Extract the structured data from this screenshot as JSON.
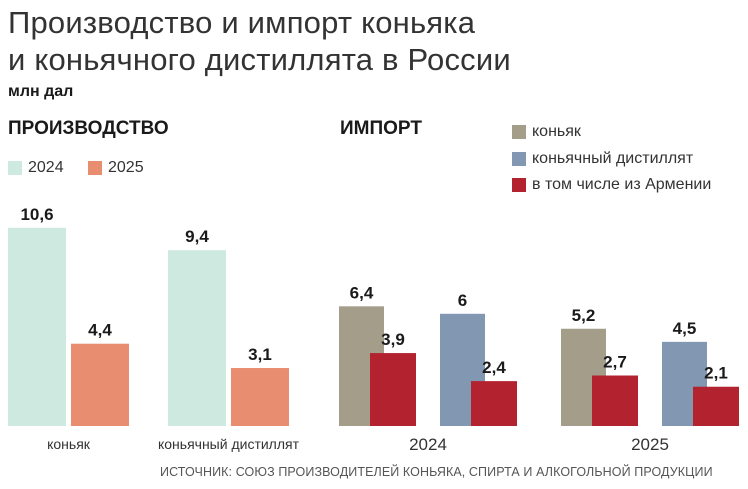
{
  "title_line1": "Производство и импорт коньяка",
  "title_line2": "и коньячного дистиллята в России",
  "unit": "млн дал",
  "source": "ИСТОЧНИК: СОЮЗ ПРОИЗВОДИТЕЛЕЙ КОНЬЯКА, СПИРТА И АЛКОГОЛЬНОЙ ПРОДУКЦИИ",
  "colors": {
    "prod_2024": "#cde9e0",
    "prod_2025": "#e88d6f",
    "cognac": "#a39d8a",
    "distillate": "#8298b2",
    "armenia": "#b3222f"
  },
  "chart_data": [
    {
      "type": "bar",
      "title": "ПРОИЗВОДСТВО",
      "legend": [
        "2024",
        "2025"
      ],
      "categories": [
        "коньяк",
        "коньячный дистиллят"
      ],
      "series": [
        {
          "name": "2024",
          "values": [
            10.6,
            9.4
          ],
          "labels": [
            "10,6",
            "9,4"
          ]
        },
        {
          "name": "2025",
          "values": [
            4.4,
            3.1
          ],
          "labels": [
            "4,4",
            "3,1"
          ]
        }
      ],
      "ylim": [
        0,
        12
      ]
    },
    {
      "type": "bar",
      "title": "ИМПОРТ",
      "legend": [
        "коньяк",
        "коньячный дистиллят",
        "в том числе из Армении"
      ],
      "categories": [
        "2024",
        "2025"
      ],
      "groups": [
        {
          "year": "2024",
          "cognac": {
            "value": 6.4,
            "label": "6,4"
          },
          "cognac_armenia": {
            "value": 3.9,
            "label": "3,9"
          },
          "distillate": {
            "value": 6.0,
            "label": "6"
          },
          "distillate_armenia": {
            "value": 2.4,
            "label": "2,4"
          }
        },
        {
          "year": "2025",
          "cognac": {
            "value": 5.2,
            "label": "5,2"
          },
          "cognac_armenia": {
            "value": 2.7,
            "label": "2,7"
          },
          "distillate": {
            "value": 4.5,
            "label": "4,5"
          },
          "distillate_armenia": {
            "value": 2.1,
            "label": "2,1"
          }
        }
      ],
      "ylim": [
        0,
        12
      ]
    }
  ]
}
